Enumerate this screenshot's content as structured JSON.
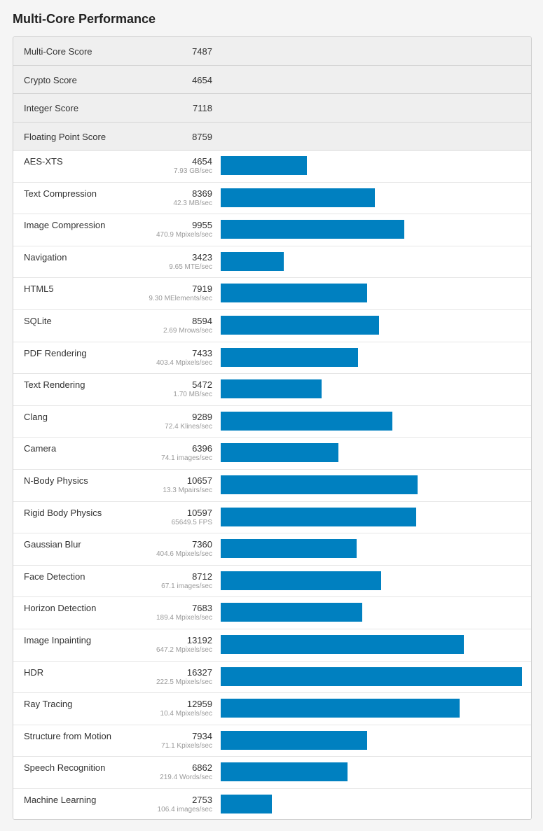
{
  "page": {
    "title": "Multi-Core Performance"
  },
  "summary": [
    {
      "label": "Multi-Core Score",
      "score": "7487"
    },
    {
      "label": "Crypto Score",
      "score": "4654"
    },
    {
      "label": "Integer Score",
      "score": "7118"
    },
    {
      "label": "Floating Point Score",
      "score": "8759"
    }
  ],
  "chart_data": {
    "type": "bar",
    "orientation": "horizontal",
    "bar_color": "#0080c0",
    "xlim": [
      0,
      16327
    ],
    "categories": [
      "AES-XTS",
      "Text Compression",
      "Image Compression",
      "Navigation",
      "HTML5",
      "SQLite",
      "PDF Rendering",
      "Text Rendering",
      "Clang",
      "Camera",
      "N-Body Physics",
      "Rigid Body Physics",
      "Gaussian Blur",
      "Face Detection",
      "Horizon Detection",
      "Image Inpainting",
      "HDR",
      "Ray Tracing",
      "Structure from Motion",
      "Speech Recognition",
      "Machine Learning"
    ],
    "values": [
      4654,
      8369,
      9955,
      3423,
      7919,
      8594,
      7433,
      5472,
      9289,
      6396,
      10657,
      10597,
      7360,
      8712,
      7683,
      13192,
      16327,
      12959,
      7934,
      6862,
      2753
    ],
    "rates": [
      "7.93 GB/sec",
      "42.3 MB/sec",
      "470.9 Mpixels/sec",
      "9.65 MTE/sec",
      "9.30 MElements/sec",
      "2.69 Mrows/sec",
      "403.4 Mpixels/sec",
      "1.70 MB/sec",
      "72.4 Klines/sec",
      "74.1 images/sec",
      "13.3 Mpairs/sec",
      "65649.5 FPS",
      "404.6 Mpixels/sec",
      "67.1 images/sec",
      "189.4 Mpixels/sec",
      "647.2 Mpixels/sec",
      "222.5 Mpixels/sec",
      "10.4 Mpixels/sec",
      "71.1 Kpixels/sec",
      "219.4 Words/sec",
      "106.4 images/sec"
    ]
  }
}
